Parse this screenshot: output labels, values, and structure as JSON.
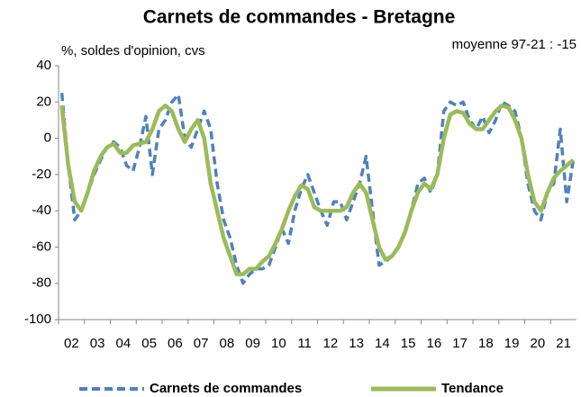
{
  "chart_data": {
    "type": "line",
    "title": "Carnets de commandes - Bretagne",
    "subtitle": "%, soldes d'opinion, cvs",
    "annotation": "moyenne 97-21 :  -15",
    "categories": [
      null,
      "02",
      null,
      null,
      null,
      "03",
      null,
      null,
      null,
      "04",
      null,
      null,
      null,
      "05",
      null,
      null,
      null,
      "06",
      null,
      null,
      null,
      "07",
      null,
      null,
      null,
      "08",
      null,
      null,
      null,
      "09",
      null,
      null,
      null,
      "10",
      null,
      null,
      null,
      "11",
      null,
      null,
      null,
      "12",
      null,
      null,
      null,
      "13",
      null,
      null,
      null,
      "14",
      null,
      null,
      null,
      "15",
      null,
      null,
      null,
      "16",
      null,
      null,
      null,
      "17",
      null,
      null,
      null,
      "18",
      null,
      null,
      null,
      "19",
      null,
      null,
      null,
      "20",
      null,
      null,
      null,
      "21",
      null,
      null
    ],
    "series": [
      {
        "name": "Carnets de commandes",
        "color": "#4f81bd",
        "dashed": true,
        "values": [
          25,
          -15,
          -45,
          -40,
          -30,
          -20,
          -12,
          -5,
          -2,
          -5,
          -15,
          -18,
          -5,
          12,
          -20,
          5,
          10,
          20,
          24,
          0,
          -5,
          5,
          15,
          5,
          -25,
          -45,
          -55,
          -70,
          -80,
          -75,
          -72,
          -72,
          -70,
          -60,
          -50,
          -58,
          -40,
          -28,
          -20,
          -30,
          -40,
          -48,
          -35,
          -35,
          -45,
          -35,
          -25,
          -10,
          -40,
          -70,
          -68,
          -65,
          -60,
          -52,
          -40,
          -25,
          -22,
          -30,
          -20,
          15,
          20,
          18,
          20,
          10,
          5,
          12,
          3,
          10,
          20,
          18,
          15,
          0,
          -25,
          -40,
          -45,
          -30,
          -25,
          5,
          -35,
          -12
        ]
      },
      {
        "name": "Tendance",
        "color": "#9bbb59",
        "dashed": false,
        "values": [
          18,
          -15,
          -35,
          -40,
          -30,
          -18,
          -10,
          -5,
          -3,
          -8,
          -8,
          -4,
          -3,
          -2,
          5,
          15,
          18,
          15,
          5,
          -2,
          5,
          10,
          0,
          -25,
          -40,
          -55,
          -65,
          -75,
          -75,
          -72,
          -72,
          -68,
          -65,
          -58,
          -50,
          -40,
          -32,
          -26,
          -28,
          -38,
          -40,
          -40,
          -40,
          -40,
          -38,
          -30,
          -25,
          -30,
          -45,
          -60,
          -67,
          -65,
          -60,
          -52,
          -40,
          -30,
          -25,
          -28,
          -20,
          0,
          13,
          15,
          14,
          8,
          5,
          5,
          10,
          15,
          18,
          17,
          10,
          0,
          -20,
          -35,
          -40,
          -30,
          -22,
          -18,
          -15,
          -12
        ]
      }
    ],
    "ylim": [
      -100,
      40
    ],
    "yticks": [
      -100,
      -80,
      -60,
      -40,
      -20,
      0,
      20,
      40
    ],
    "grid": false
  }
}
